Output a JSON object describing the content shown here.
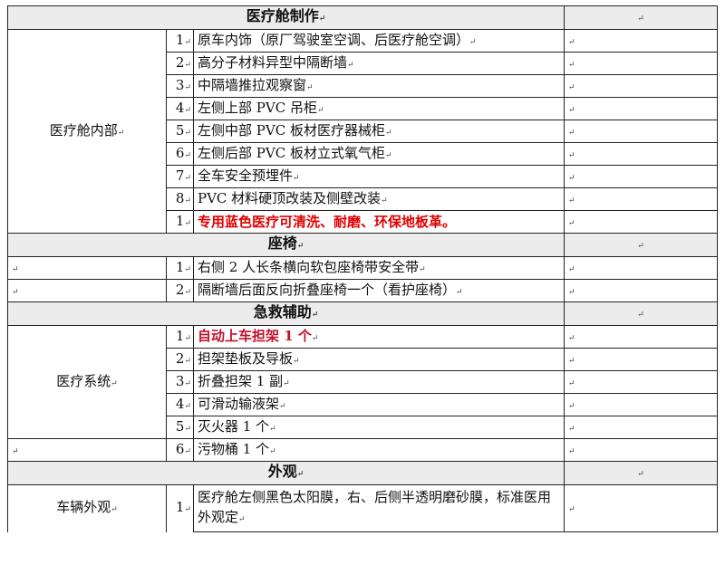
{
  "para_mark": "↵",
  "sections": [
    {
      "title": "医疗舱制作",
      "group": "医疗舱内部",
      "items": [
        {
          "no": "1",
          "text": "原车内饰（原厂驾驶室空调、后医疗舱空调）"
        },
        {
          "no": "2",
          "text": "高分子材料异型中隔断墙"
        },
        {
          "no": "3",
          "text": "中隔墙推拉观察窗"
        },
        {
          "no": "4",
          "text": "左侧上部 PVC 吊柜"
        },
        {
          "no": "5",
          "text": "左侧中部 PVC 板材医疗器械柜"
        },
        {
          "no": "6",
          "text": "左侧后部 PVC 板材立式氧气柜"
        },
        {
          "no": "7",
          "text": "全车安全预埋件"
        },
        {
          "no": "8",
          "text": "PVC 材料硬顶改装及侧壁改装"
        },
        {
          "no": "1",
          "text": "专用蓝色医疗可清洗、耐磨、环保地板革。",
          "highlight": "#e00000"
        }
      ]
    },
    {
      "title": "座椅",
      "items": [
        {
          "no": "1",
          "text": "右侧 2 人长条横向软包座椅带安全带"
        },
        {
          "no": "2",
          "text": "隔断墙后面反向折叠座椅一个（看护座椅）"
        }
      ]
    },
    {
      "title": "急救辅助",
      "group": "医疗系统",
      "items": [
        {
          "no": "1",
          "text": "自动上车担架 1 个",
          "highlight": "#c0102a"
        },
        {
          "no": "2",
          "text": "担架垫板及导板"
        },
        {
          "no": "3",
          "text": "折叠担架 1 副"
        },
        {
          "no": "4",
          "text": "可滑动输液架"
        },
        {
          "no": "5",
          "text": "灭火器 1 个"
        },
        {
          "no": "6",
          "text": "污物桶 1 个"
        }
      ]
    },
    {
      "title": "外观",
      "group": "车辆外观",
      "items": [
        {
          "no": "1",
          "text": "医疗舱左侧黑色太阳膜，右、后侧半透明磨砂膜，标准医用外观定"
        }
      ]
    }
  ]
}
